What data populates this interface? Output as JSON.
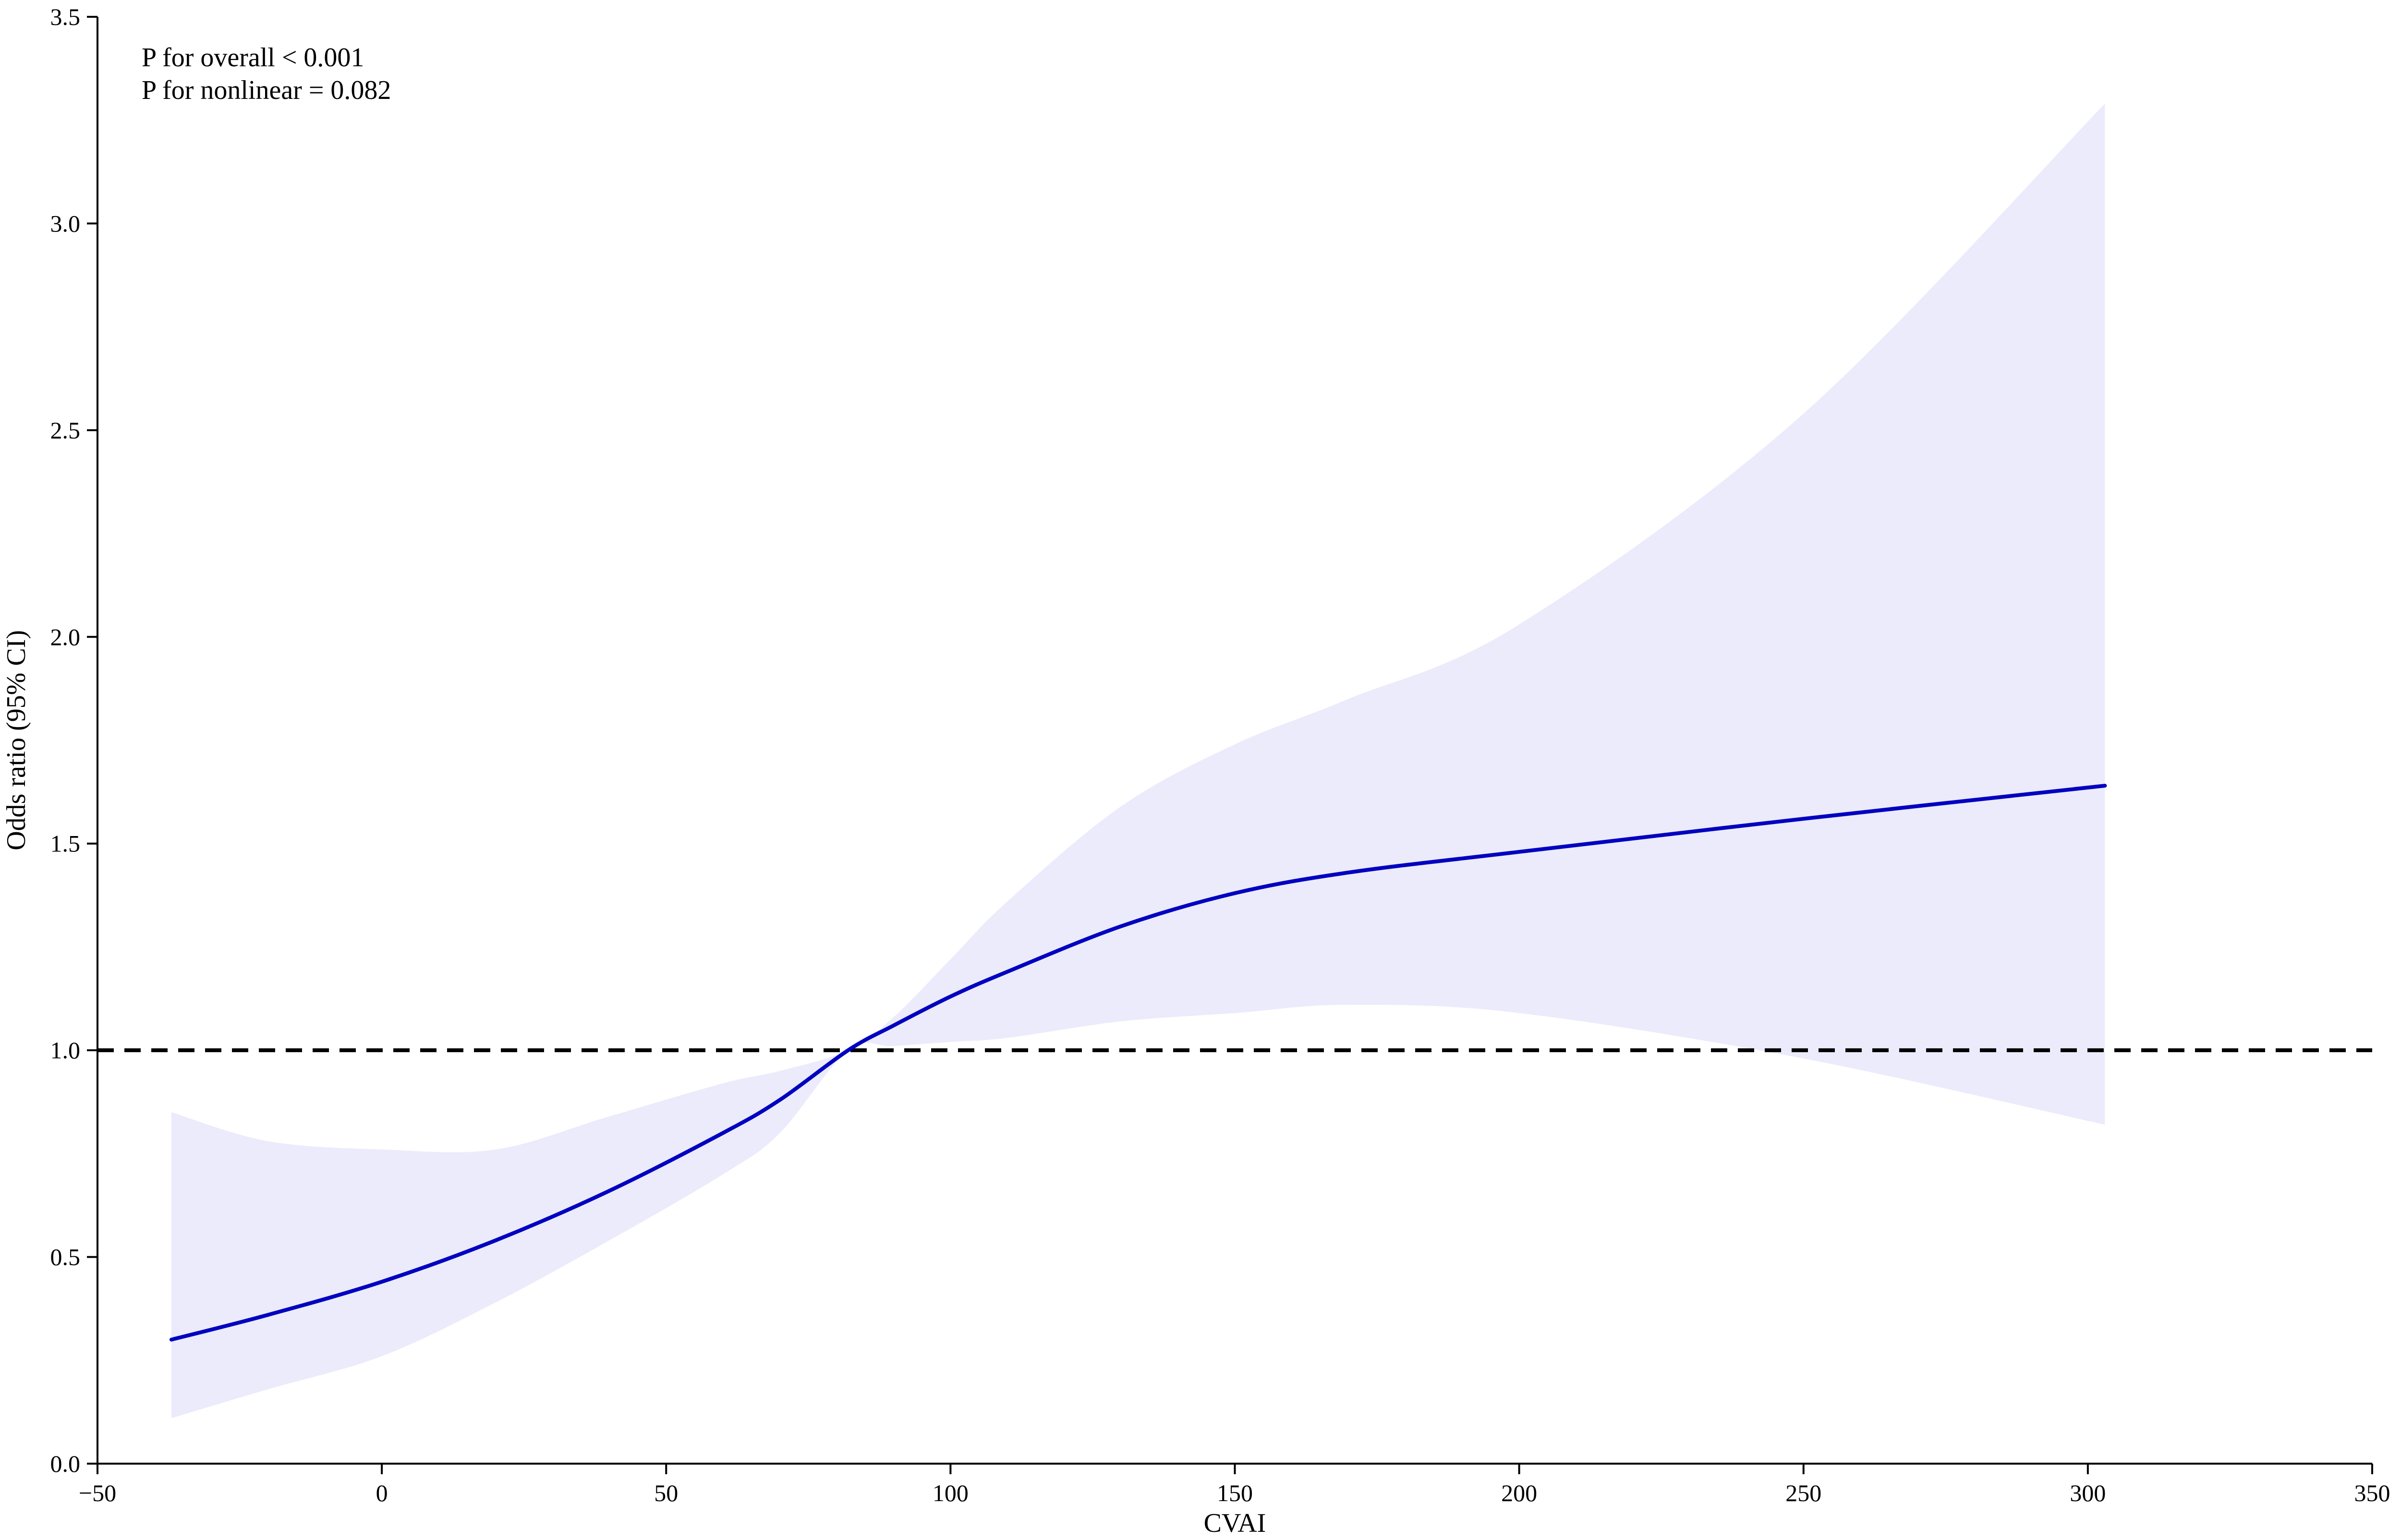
{
  "chart_data": {
    "type": "line",
    "title": "",
    "xlabel": "CVAI",
    "ylabel": "Odds ratio (95% CI)",
    "xlim": [
      -50,
      350
    ],
    "ylim": [
      0.0,
      3.5
    ],
    "xticks": [
      -50,
      0,
      50,
      100,
      150,
      200,
      250,
      300,
      350
    ],
    "xtick_labels": [
      "−50",
      "0",
      "50",
      "100",
      "150",
      "200",
      "250",
      "300",
      "350"
    ],
    "yticks": [
      0.0,
      0.5,
      1.0,
      1.5,
      2.0,
      2.5,
      3.0,
      3.5
    ],
    "ytick_labels": [
      "0.0",
      "0.5",
      "1.0",
      "1.5",
      "2.0",
      "2.5",
      "3.0",
      "3.5"
    ],
    "grid": false,
    "annotations": [
      "P for overall < 0.001",
      "P for nonlinear = 0.082"
    ],
    "reference_line": {
      "y": 1.0,
      "style": "dashed",
      "color": "#000000"
    },
    "series": [
      {
        "x": [
          -37,
          -20,
          0,
          20,
          40,
          60,
          70,
          82,
          90,
          100,
          110,
          130,
          150,
          170,
          200,
          250,
          303
        ],
        "y": [
          0.3,
          0.36,
          0.44,
          0.54,
          0.66,
          0.8,
          0.88,
          1.0,
          1.06,
          1.13,
          1.19,
          1.3,
          1.38,
          1.43,
          1.48,
          1.56,
          1.64
        ],
        "lower": [
          0.11,
          0.18,
          0.26,
          0.39,
          0.54,
          0.7,
          0.8,
          1.0,
          1.01,
          1.02,
          1.03,
          1.07,
          1.09,
          1.11,
          1.09,
          0.98,
          0.82
        ],
        "upper": [
          0.85,
          0.78,
          0.76,
          0.76,
          0.84,
          0.92,
          0.95,
          1.0,
          1.08,
          1.22,
          1.36,
          1.59,
          1.74,
          1.85,
          2.03,
          2.54,
          3.29
        ],
        "line_color": "#0000c0",
        "ci_color": "#ebebfb"
      }
    ]
  }
}
